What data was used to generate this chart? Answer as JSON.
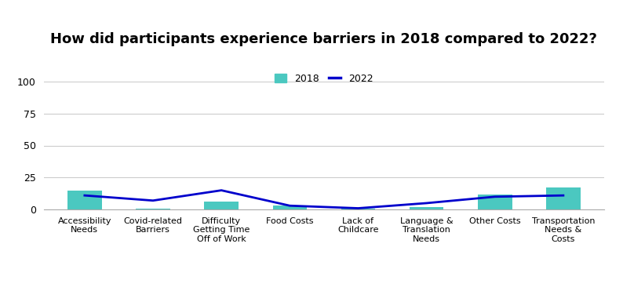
{
  "title": "How did participants experience barriers in 2018 compared to 2022?",
  "categories": [
    "Accessibility\nNeeds",
    "Covid-related\nBarriers",
    "Difficulty\nGetting Time\nOff of Work",
    "Food Costs",
    "Lack of\nChildcare",
    "Language &\nTranslation\nNeeds",
    "Other Costs",
    "Transportation\nNeeds &\nCosts"
  ],
  "bar_2018": [
    15,
    0.5,
    6,
    3,
    0.5,
    2,
    12,
    17
  ],
  "line_2022": [
    11,
    7,
    15,
    3,
    1,
    5,
    10,
    11
  ],
  "bar_color": "#4BC8C0",
  "line_color": "#0000CC",
  "ylim": [
    0,
    100
  ],
  "yticks": [
    0,
    25,
    50,
    75,
    100
  ],
  "legend_2018": "2018",
  "legend_2022": "2022",
  "title_fontsize": 13,
  "background_color": "#ffffff",
  "grid_color": "#cccccc"
}
